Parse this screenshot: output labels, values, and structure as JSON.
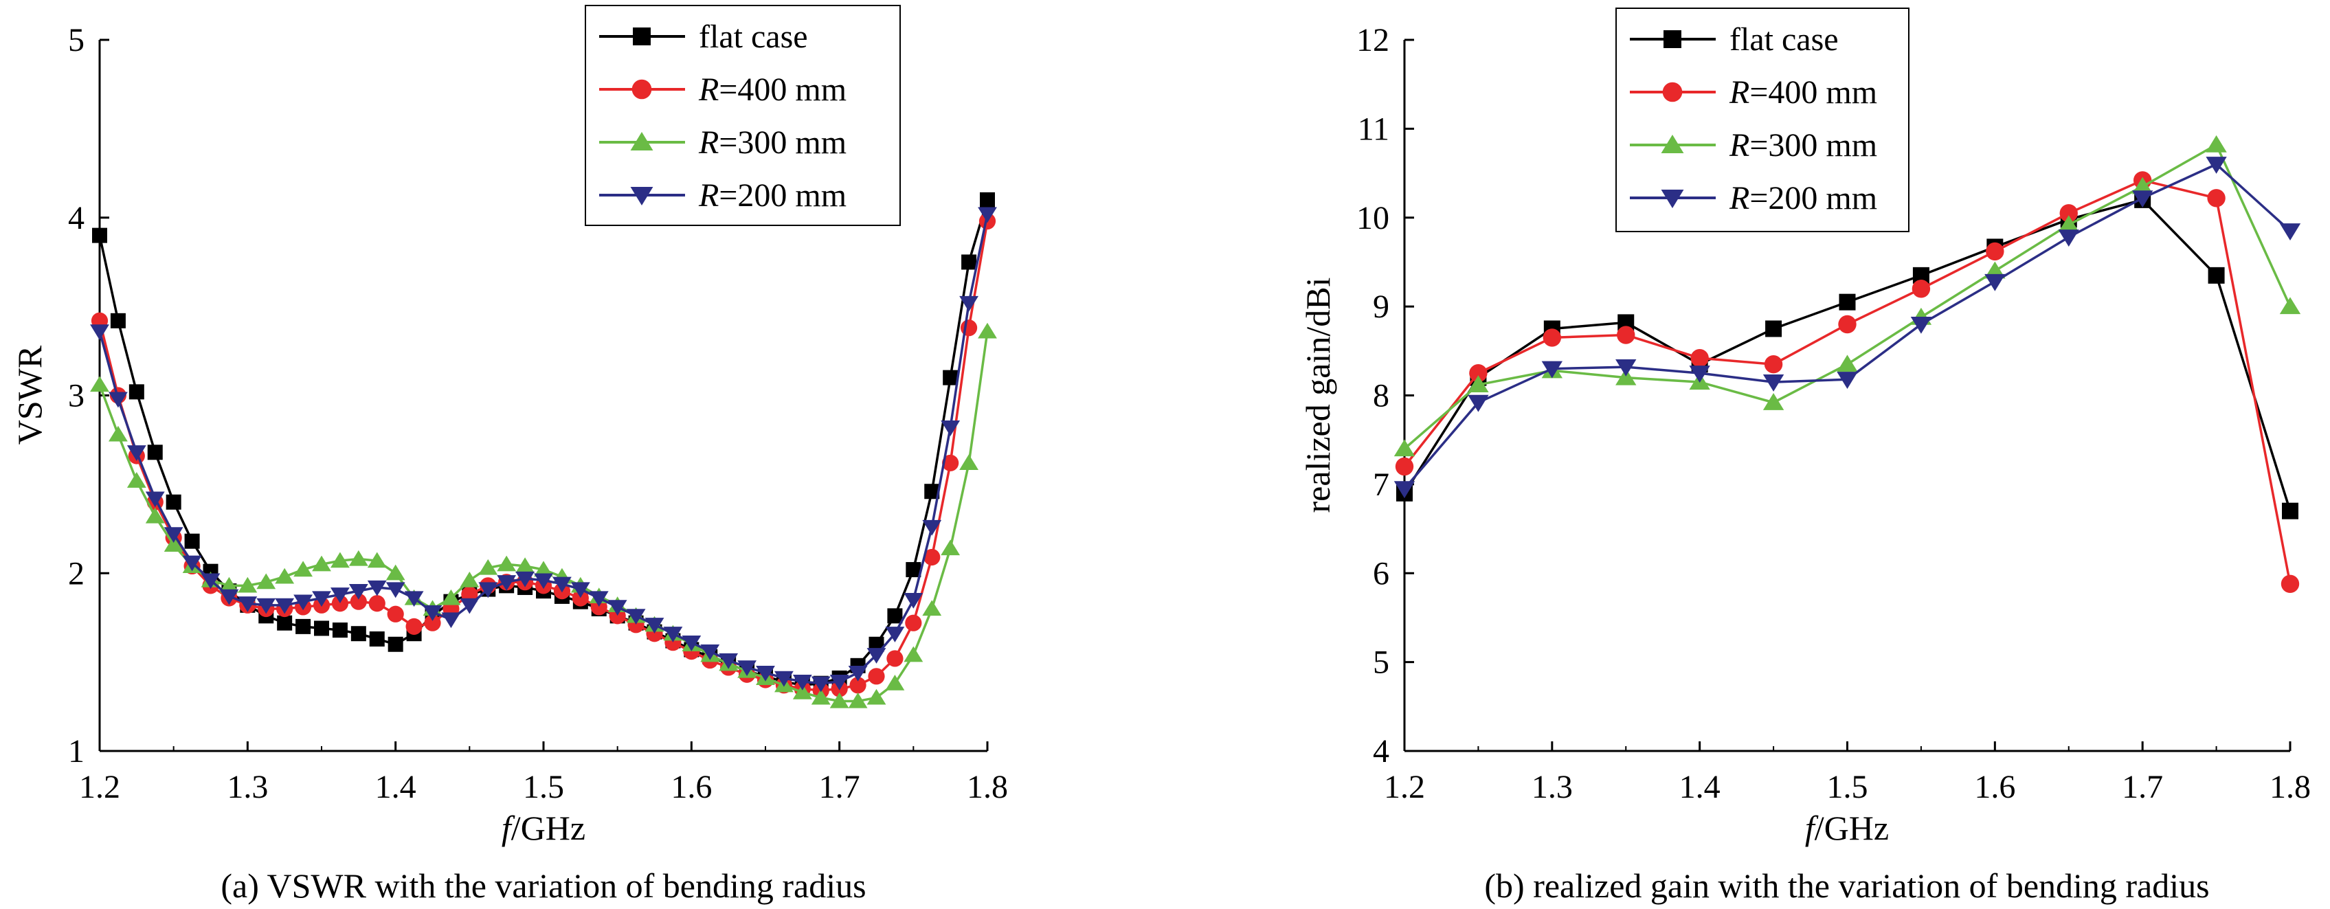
{
  "chart_data": [
    {
      "type": "line",
      "caption": "(a) VSWR with the variation of bending radius",
      "xlabel_italic": "f",
      "xlabel_rest": "/GHz",
      "ylabel": "VSWR",
      "xlim": [
        1.2,
        1.8
      ],
      "ylim": [
        1,
        5
      ],
      "xticks": [
        "1.2",
        "1.3",
        "1.4",
        "1.5",
        "1.6",
        "1.7",
        "1.8"
      ],
      "yticks": [
        "1",
        "2",
        "3",
        "4",
        "5"
      ],
      "legend_position": "top-center",
      "series": [
        {
          "name": "flat case",
          "color": "#000000",
          "marker": "square",
          "x": [
            1.2,
            1.2125,
            1.225,
            1.2375,
            1.25,
            1.2625,
            1.275,
            1.2875,
            1.3,
            1.3125,
            1.325,
            1.3375,
            1.35,
            1.3625,
            1.375,
            1.3875,
            1.4,
            1.4125,
            1.425,
            1.4375,
            1.45,
            1.4625,
            1.475,
            1.4875,
            1.5,
            1.5125,
            1.525,
            1.5375,
            1.55,
            1.5625,
            1.575,
            1.5875,
            1.6,
            1.6125,
            1.625,
            1.6375,
            1.65,
            1.6625,
            1.675,
            1.6875,
            1.7,
            1.7125,
            1.725,
            1.7375,
            1.75,
            1.7625,
            1.775,
            1.7875,
            1.8
          ],
          "values": [
            3.9,
            3.42,
            3.02,
            2.68,
            2.4,
            2.18,
            2.01,
            1.9,
            1.82,
            1.76,
            1.72,
            1.7,
            1.69,
            1.68,
            1.66,
            1.63,
            1.6,
            1.66,
            1.76,
            1.84,
            1.88,
            1.91,
            1.93,
            1.92,
            1.9,
            1.87,
            1.84,
            1.8,
            1.76,
            1.72,
            1.67,
            1.62,
            1.57,
            1.53,
            1.49,
            1.45,
            1.42,
            1.39,
            1.37,
            1.38,
            1.41,
            1.48,
            1.6,
            1.76,
            2.02,
            2.46,
            3.1,
            3.75,
            4.1
          ]
        },
        {
          "name": "R=400 mm",
          "color": "#e8282a",
          "marker": "circle",
          "x": [
            1.2,
            1.2125,
            1.225,
            1.2375,
            1.25,
            1.2625,
            1.275,
            1.2875,
            1.3,
            1.3125,
            1.325,
            1.3375,
            1.35,
            1.3625,
            1.375,
            1.3875,
            1.4,
            1.4125,
            1.425,
            1.4375,
            1.45,
            1.4625,
            1.475,
            1.4875,
            1.5,
            1.5125,
            1.525,
            1.5375,
            1.55,
            1.5625,
            1.575,
            1.5875,
            1.6,
            1.6125,
            1.625,
            1.6375,
            1.65,
            1.6625,
            1.675,
            1.6875,
            1.7,
            1.7125,
            1.725,
            1.7375,
            1.75,
            1.7625,
            1.775,
            1.7875,
            1.8
          ],
          "values": [
            3.42,
            3.0,
            2.66,
            2.4,
            2.2,
            2.04,
            1.93,
            1.86,
            1.82,
            1.8,
            1.8,
            1.81,
            1.82,
            1.83,
            1.84,
            1.83,
            1.77,
            1.7,
            1.72,
            1.8,
            1.88,
            1.93,
            1.95,
            1.95,
            1.93,
            1.9,
            1.86,
            1.81,
            1.76,
            1.71,
            1.66,
            1.61,
            1.56,
            1.51,
            1.47,
            1.43,
            1.4,
            1.37,
            1.35,
            1.34,
            1.35,
            1.37,
            1.42,
            1.52,
            1.72,
            2.09,
            2.62,
            3.38,
            3.98
          ]
        },
        {
          "name": "R=300 mm",
          "color": "#6abb45",
          "marker": "triangle-up",
          "x": [
            1.2,
            1.2125,
            1.225,
            1.2375,
            1.25,
            1.2625,
            1.275,
            1.2875,
            1.3,
            1.3125,
            1.325,
            1.3375,
            1.35,
            1.3625,
            1.375,
            1.3875,
            1.4,
            1.4125,
            1.425,
            1.4375,
            1.45,
            1.4625,
            1.475,
            1.4875,
            1.5,
            1.5125,
            1.525,
            1.5375,
            1.55,
            1.5625,
            1.575,
            1.5875,
            1.6,
            1.6125,
            1.625,
            1.6375,
            1.65,
            1.6625,
            1.675,
            1.6875,
            1.7,
            1.7125,
            1.725,
            1.7375,
            1.75,
            1.7625,
            1.775,
            1.7875,
            1.8
          ],
          "values": [
            3.06,
            2.78,
            2.52,
            2.32,
            2.16,
            2.04,
            1.96,
            1.93,
            1.93,
            1.95,
            1.98,
            2.02,
            2.05,
            2.07,
            2.08,
            2.07,
            2.0,
            1.86,
            1.8,
            1.86,
            1.96,
            2.03,
            2.05,
            2.04,
            2.02,
            1.98,
            1.93,
            1.87,
            1.82,
            1.76,
            1.71,
            1.66,
            1.6,
            1.54,
            1.49,
            1.45,
            1.41,
            1.37,
            1.33,
            1.3,
            1.28,
            1.28,
            1.3,
            1.38,
            1.54,
            1.8,
            2.14,
            2.62,
            3.36
          ]
        },
        {
          "name": "R=200 mm",
          "color": "#2b2e86",
          "marker": "triangle-down",
          "x": [
            1.2,
            1.2125,
            1.225,
            1.2375,
            1.25,
            1.2625,
            1.275,
            1.2875,
            1.3,
            1.3125,
            1.325,
            1.3375,
            1.35,
            1.3625,
            1.375,
            1.3875,
            1.4,
            1.4125,
            1.425,
            1.4375,
            1.45,
            1.4625,
            1.475,
            1.4875,
            1.5,
            1.5125,
            1.525,
            1.5375,
            1.55,
            1.5625,
            1.575,
            1.5875,
            1.6,
            1.6125,
            1.625,
            1.6375,
            1.65,
            1.6625,
            1.675,
            1.6875,
            1.7,
            1.7125,
            1.725,
            1.7375,
            1.75,
            1.7625,
            1.775,
            1.7875,
            1.8
          ],
          "values": [
            3.36,
            2.98,
            2.68,
            2.42,
            2.22,
            2.06,
            1.96,
            1.87,
            1.83,
            1.82,
            1.82,
            1.84,
            1.86,
            1.88,
            1.9,
            1.92,
            1.91,
            1.86,
            1.78,
            1.74,
            1.82,
            1.91,
            1.95,
            1.97,
            1.96,
            1.94,
            1.91,
            1.86,
            1.81,
            1.76,
            1.71,
            1.66,
            1.61,
            1.56,
            1.51,
            1.47,
            1.44,
            1.41,
            1.39,
            1.38,
            1.39,
            1.44,
            1.54,
            1.66,
            1.85,
            2.26,
            2.82,
            3.52,
            4.02
          ]
        }
      ]
    },
    {
      "type": "line",
      "caption": "(b) realized gain with the variation of bending radius",
      "xlabel_italic": "f",
      "xlabel_rest": "/GHz",
      "ylabel": "realized gain/dBi",
      "xlim": [
        1.2,
        1.8
      ],
      "ylim": [
        4,
        12
      ],
      "xticks": [
        "1.2",
        "1.3",
        "1.4",
        "1.5",
        "1.6",
        "1.7",
        "1.8"
      ],
      "yticks": [
        "4",
        "5",
        "6",
        "7",
        "8",
        "9",
        "10",
        "11",
        "12"
      ],
      "legend_position": "top-left",
      "series": [
        {
          "name": "flat case",
          "color": "#000000",
          "marker": "square",
          "x": [
            1.2,
            1.25,
            1.3,
            1.35,
            1.4,
            1.45,
            1.5,
            1.55,
            1.6,
            1.65,
            1.7,
            1.75,
            1.8
          ],
          "values": [
            6.9,
            8.2,
            8.75,
            8.82,
            8.35,
            8.75,
            9.05,
            9.35,
            9.67,
            9.98,
            10.2,
            9.35,
            6.7
          ]
        },
        {
          "name": "R=400 mm",
          "color": "#e8282a",
          "marker": "circle",
          "x": [
            1.2,
            1.25,
            1.3,
            1.35,
            1.4,
            1.45,
            1.5,
            1.55,
            1.6,
            1.65,
            1.7,
            1.75,
            1.8
          ],
          "values": [
            7.2,
            8.25,
            8.65,
            8.68,
            8.42,
            8.35,
            8.8,
            9.2,
            9.62,
            10.05,
            10.42,
            10.22,
            5.88
          ]
        },
        {
          "name": "R=300 mm",
          "color": "#6abb45",
          "marker": "triangle-up",
          "x": [
            1.2,
            1.25,
            1.3,
            1.35,
            1.4,
            1.45,
            1.5,
            1.55,
            1.6,
            1.65,
            1.7,
            1.75,
            1.8
          ],
          "values": [
            7.4,
            8.12,
            8.28,
            8.2,
            8.15,
            7.92,
            8.35,
            8.88,
            9.4,
            9.92,
            10.35,
            10.82,
            9.0
          ]
        },
        {
          "name": "R=200 mm",
          "color": "#2b2e86",
          "marker": "triangle-down",
          "x": [
            1.2,
            1.25,
            1.3,
            1.35,
            1.4,
            1.45,
            1.5,
            1.55,
            1.6,
            1.65,
            1.7,
            1.75,
            1.8
          ],
          "values": [
            6.95,
            7.92,
            8.3,
            8.32,
            8.25,
            8.15,
            8.18,
            8.8,
            9.28,
            9.78,
            10.22,
            10.6,
            9.85
          ]
        }
      ]
    }
  ]
}
